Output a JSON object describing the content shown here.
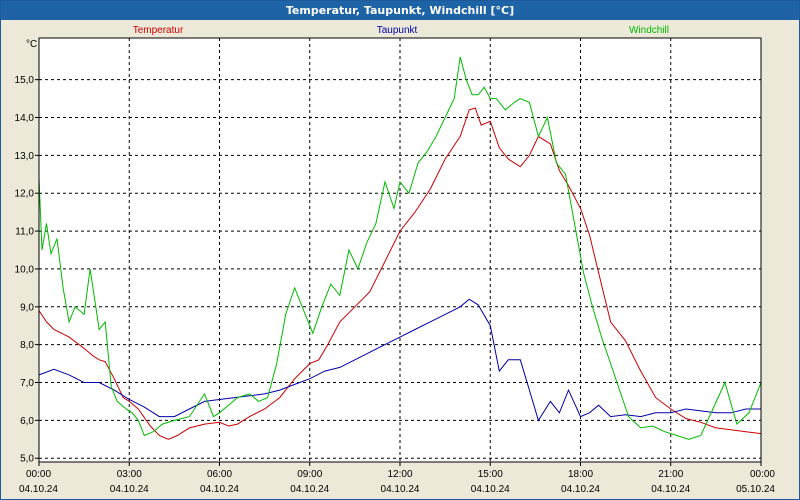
{
  "chart_data": {
    "type": "line",
    "title": "Temperatur, Taupunkt, Windchill [°C]",
    "ylabel": "°C",
    "ylim": [
      4.9,
      16.1
    ],
    "xlim": [
      0,
      24
    ],
    "grid": true,
    "y_ticks": [
      5.0,
      6.0,
      7.0,
      8.0,
      9.0,
      10.0,
      11.0,
      12.0,
      13.0,
      14.0,
      15.0
    ],
    "y_tick_labels": [
      "5,0",
      "6,0",
      "7,0",
      "8,0",
      "9,0",
      "10,0",
      "11,0",
      "12,0",
      "13,0",
      "14,0",
      "15,0"
    ],
    "x_ticks": [
      {
        "hour": 0,
        "time": "00:00",
        "date": "04.10.24"
      },
      {
        "hour": 3,
        "time": "03:00",
        "date": "04.10.24"
      },
      {
        "hour": 6,
        "time": "06:00",
        "date": "04.10.24"
      },
      {
        "hour": 9,
        "time": "09:00",
        "date": "04.10.24"
      },
      {
        "hour": 12,
        "time": "12:00",
        "date": "04.10.24"
      },
      {
        "hour": 15,
        "time": "15:00",
        "date": "04.10.24"
      },
      {
        "hour": 18,
        "time": "18:00",
        "date": "04.10.24"
      },
      {
        "hour": 21,
        "time": "21:00",
        "date": "04.10.24"
      },
      {
        "hour": 24,
        "time": "00:00",
        "date": "05.10.24"
      }
    ],
    "series": [
      {
        "name": "Temperatur",
        "color": "#cc0000",
        "x": [
          0,
          0.25,
          0.5,
          1,
          1.5,
          1.8,
          2,
          2.2,
          2.5,
          2.8,
          3,
          3.3,
          3.7,
          4,
          4.3,
          4.6,
          5,
          5.5,
          6,
          6.3,
          6.6,
          7,
          7.5,
          8,
          8.5,
          9,
          9.3,
          9.6,
          10,
          10.5,
          11,
          11.5,
          12,
          12.5,
          13,
          13.5,
          14,
          14.3,
          14.5,
          14.7,
          15,
          15.3,
          15.6,
          16,
          16.3,
          16.6,
          17,
          17.3,
          17.6,
          18,
          18.3,
          18.6,
          19,
          19.5,
          20,
          20.5,
          21,
          21.5,
          22,
          22.5,
          23,
          23.5,
          24
        ],
        "values": [
          8.9,
          8.6,
          8.4,
          8.2,
          7.9,
          7.7,
          7.6,
          7.55,
          7.1,
          6.6,
          6.5,
          6.3,
          5.85,
          5.6,
          5.5,
          5.6,
          5.8,
          5.9,
          5.95,
          5.85,
          5.9,
          6.1,
          6.3,
          6.6,
          7.1,
          7.5,
          7.6,
          8.0,
          8.6,
          9.0,
          9.4,
          10.2,
          11.0,
          11.5,
          12.1,
          12.9,
          13.5,
          14.2,
          14.25,
          13.8,
          13.9,
          13.2,
          12.9,
          12.7,
          13.0,
          13.5,
          13.3,
          12.6,
          12.2,
          11.6,
          10.9,
          9.9,
          8.6,
          8.1,
          7.3,
          6.6,
          6.3,
          6.05,
          5.95,
          5.8,
          5.75,
          5.7,
          5.65
        ]
      },
      {
        "name": "Taupunkt",
        "color": "#0000aa",
        "x": [
          0,
          0.5,
          1,
          1.5,
          2,
          2.5,
          3,
          3.5,
          4,
          4.5,
          5,
          5.5,
          6,
          6.5,
          7,
          7.5,
          8,
          8.5,
          9,
          9.5,
          10,
          10.5,
          11,
          11.5,
          12,
          12.5,
          13,
          13.5,
          14,
          14.3,
          14.6,
          15,
          15.3,
          15.6,
          16,
          16.3,
          16.6,
          17,
          17.3,
          17.6,
          18,
          18.3,
          18.6,
          19,
          19.5,
          20,
          20.5,
          21,
          21.5,
          22,
          22.5,
          23,
          23.5,
          24
        ],
        "values": [
          7.2,
          7.35,
          7.2,
          7.0,
          7.0,
          6.8,
          6.55,
          6.35,
          6.1,
          6.1,
          6.3,
          6.5,
          6.55,
          6.6,
          6.65,
          6.7,
          6.8,
          6.95,
          7.1,
          7.3,
          7.4,
          7.6,
          7.8,
          8.0,
          8.2,
          8.4,
          8.6,
          8.8,
          9.0,
          9.2,
          9.05,
          8.5,
          7.3,
          7.6,
          7.6,
          6.8,
          6.0,
          6.5,
          6.2,
          6.8,
          6.1,
          6.2,
          6.4,
          6.1,
          6.15,
          6.1,
          6.2,
          6.2,
          6.3,
          6.25,
          6.2,
          6.2,
          6.3,
          6.3
        ]
      },
      {
        "name": "Windchill",
        "color": "#00bb00",
        "x": [
          0,
          0.1,
          0.25,
          0.4,
          0.6,
          0.8,
          1,
          1.2,
          1.5,
          1.7,
          2,
          2.2,
          2.4,
          2.6,
          2.9,
          3.1,
          3.3,
          3.5,
          3.8,
          4.1,
          4.5,
          5,
          5.5,
          5.8,
          6,
          6.3,
          6.6,
          7,
          7.3,
          7.6,
          7.9,
          8.2,
          8.5,
          8.8,
          9.1,
          9.4,
          9.7,
          10,
          10.3,
          10.6,
          10.9,
          11.2,
          11.5,
          11.8,
          12,
          12.3,
          12.6,
          12.9,
          13.2,
          13.5,
          13.8,
          14,
          14.2,
          14.4,
          14.6,
          14.8,
          15,
          15.2,
          15.5,
          15.8,
          16,
          16.3,
          16.6,
          16.9,
          17.2,
          17.5,
          17.8,
          18.1,
          18.4,
          18.7,
          19,
          19.3,
          19.6,
          20,
          20.4,
          20.8,
          21.2,
          21.6,
          22,
          22.4,
          22.8,
          23.2,
          23.6,
          24
        ],
        "values": [
          12.4,
          10.5,
          11.2,
          10.4,
          10.8,
          9.5,
          8.6,
          9.0,
          8.8,
          10.0,
          8.4,
          8.6,
          6.9,
          6.5,
          6.3,
          6.2,
          6.0,
          5.6,
          5.7,
          5.9,
          6.0,
          6.1,
          6.7,
          6.1,
          6.2,
          6.4,
          6.6,
          6.7,
          6.5,
          6.6,
          7.5,
          8.8,
          9.5,
          8.9,
          8.3,
          9.0,
          9.6,
          9.3,
          10.5,
          10.0,
          10.7,
          11.2,
          12.3,
          11.6,
          12.3,
          12.0,
          12.8,
          13.1,
          13.5,
          14.0,
          14.5,
          15.6,
          15.0,
          14.6,
          14.6,
          14.8,
          14.5,
          14.5,
          14.2,
          14.4,
          14.5,
          14.4,
          13.5,
          14.0,
          12.8,
          12.5,
          11.2,
          9.9,
          9.0,
          8.2,
          7.5,
          6.8,
          6.1,
          5.8,
          5.85,
          5.7,
          5.6,
          5.5,
          5.6,
          6.3,
          7.0,
          5.9,
          6.2,
          7.0
        ]
      }
    ]
  }
}
